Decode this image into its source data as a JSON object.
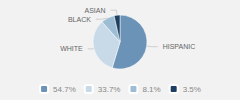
{
  "chart_data": {
    "type": "pie",
    "categories": [
      "HISPANIC",
      "WHITE",
      "BLACK",
      "ASIAN"
    ],
    "values": [
      54.7,
      33.7,
      8.1,
      3.5
    ],
    "value_labels": [
      "54.7%",
      "33.7%",
      "8.1%",
      "3.5%"
    ],
    "colors": [
      "#6b93b8",
      "#c8d9e8",
      "#9dbdd4",
      "#1e3f62"
    ],
    "legend": "bottom"
  }
}
